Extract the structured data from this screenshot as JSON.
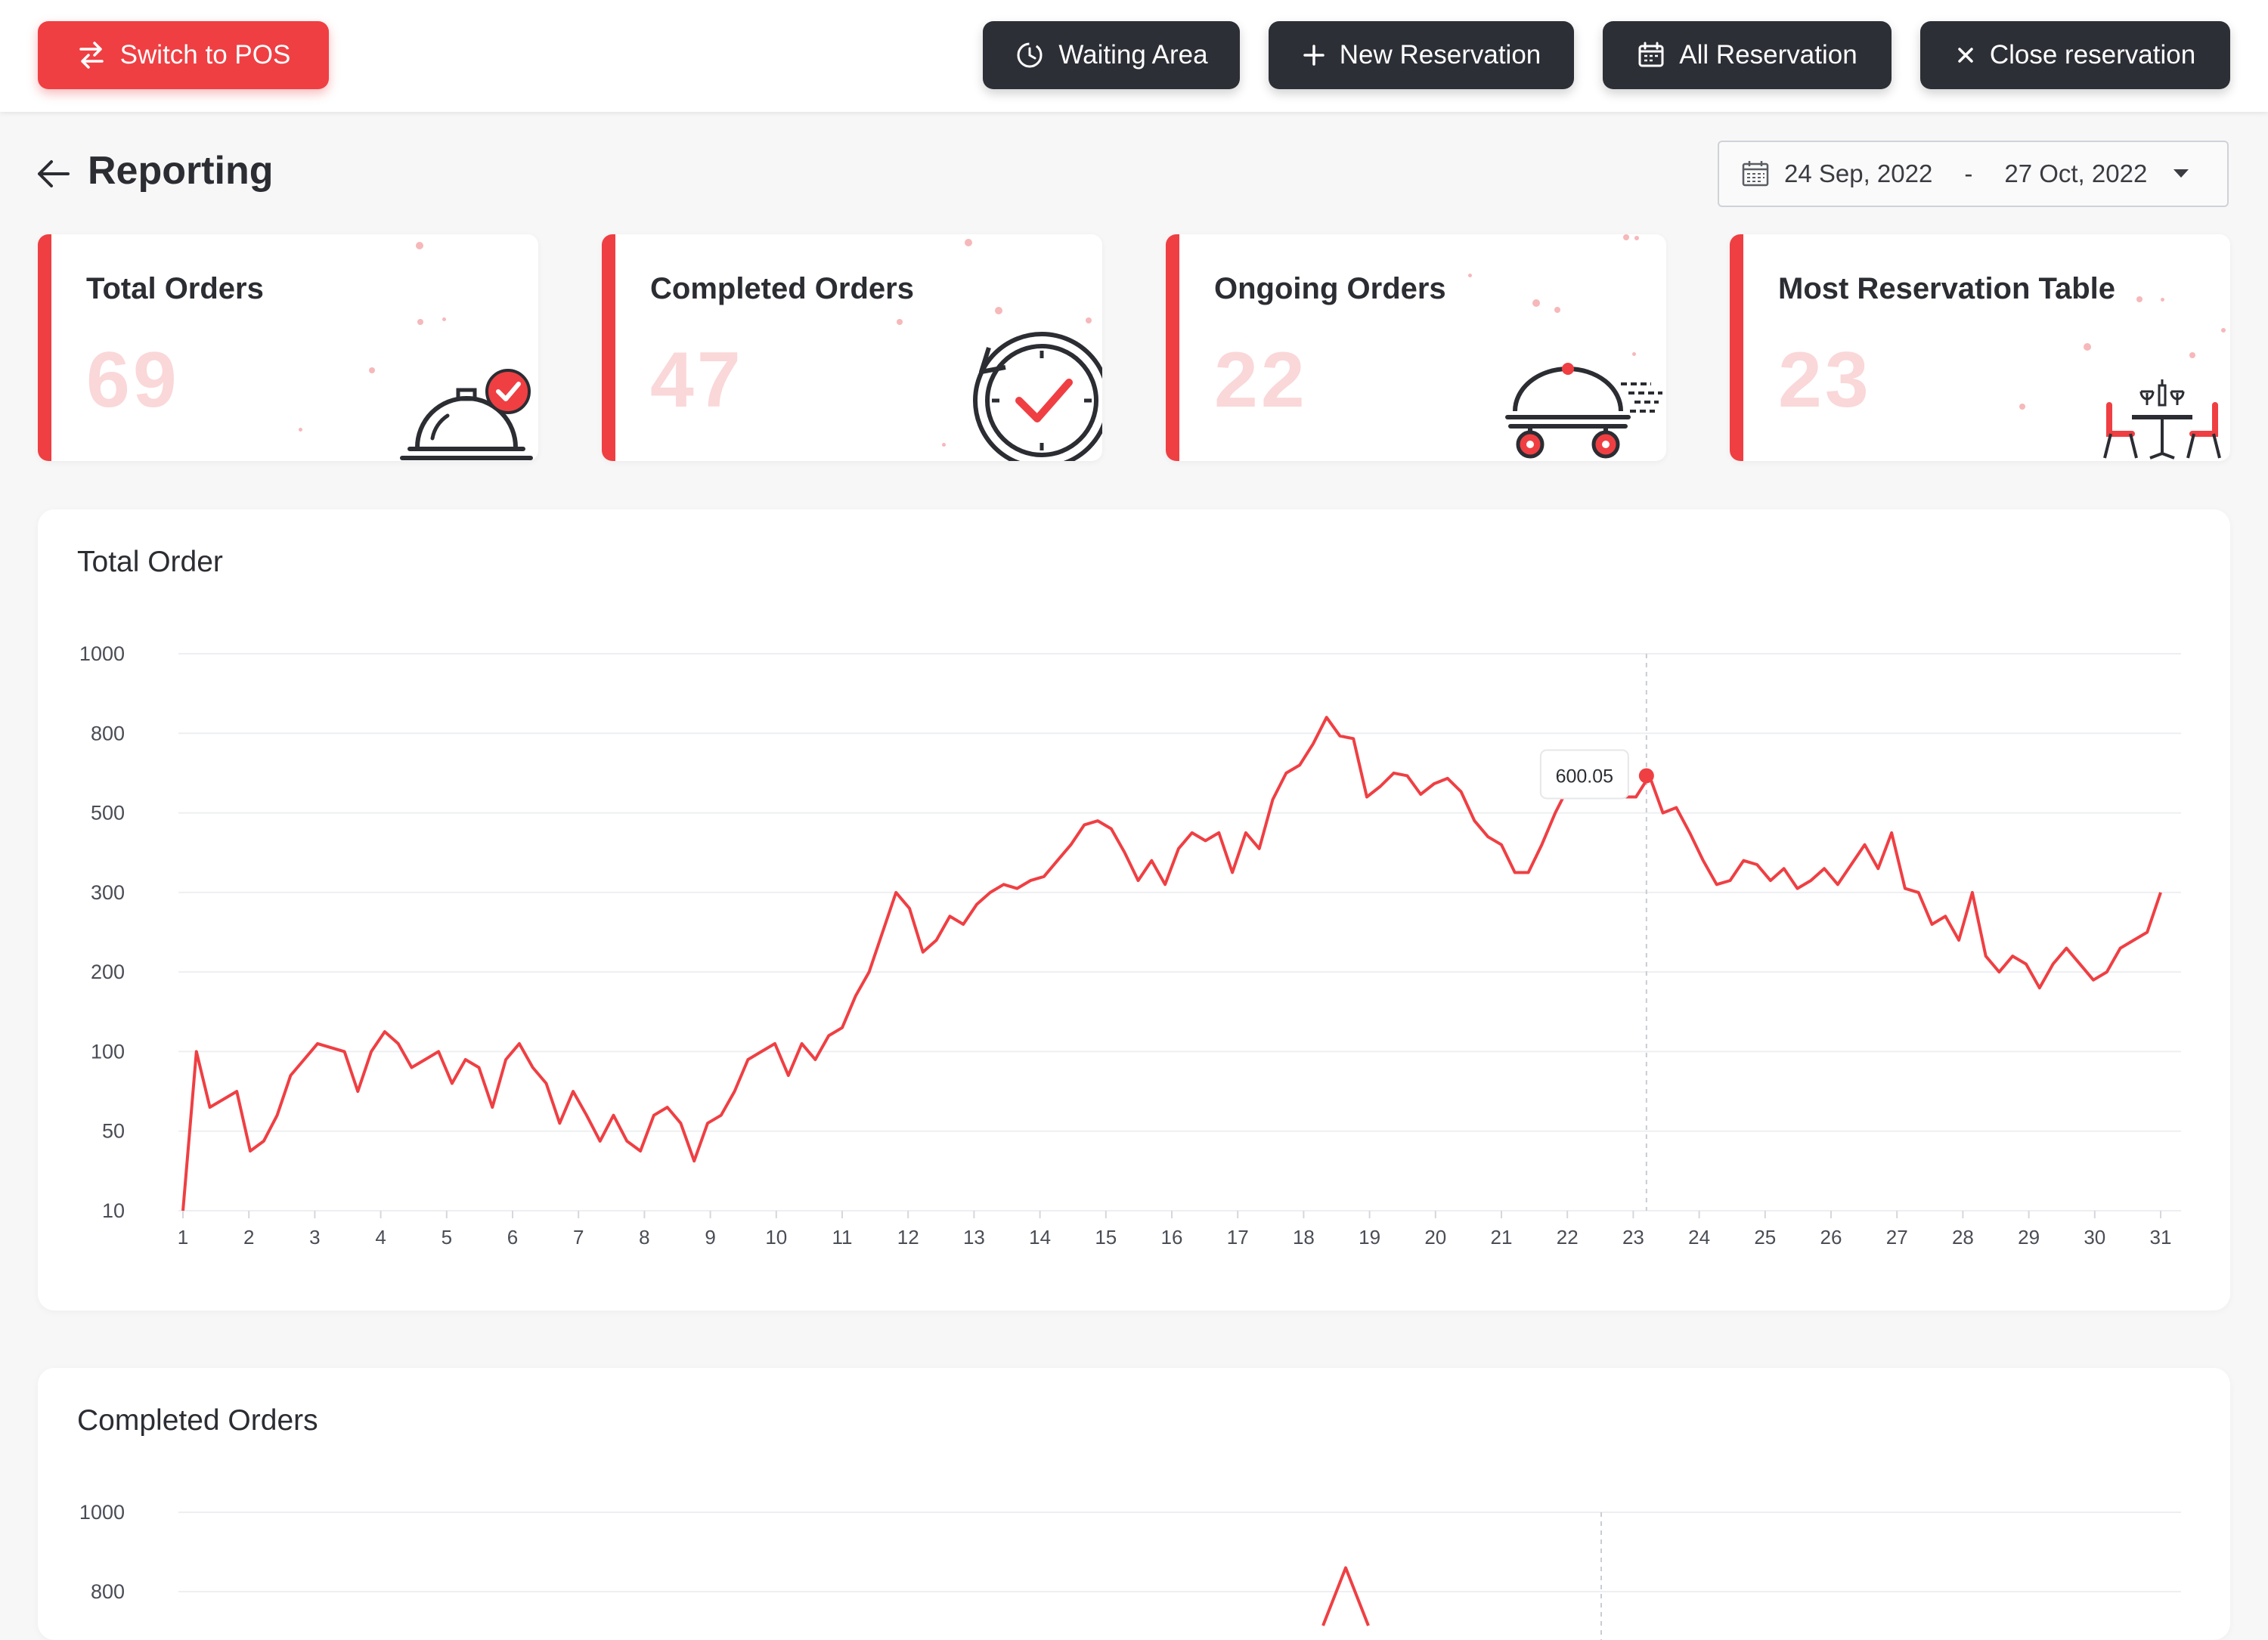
{
  "toolbar": {
    "switch_pos_label": "Switch to POS",
    "waiting_area_label": "Waiting Area",
    "new_reservation_label": "New Reservation",
    "all_reservation_label": "All Reservation",
    "close_reservation_label": "Close reservation"
  },
  "header": {
    "title": "Reporting",
    "date_start": "24 Sep, 2022",
    "date_separator": "-",
    "date_end": "27 Oct, 2022"
  },
  "cards": [
    {
      "title": "Total Orders",
      "value": "69",
      "icon": "serving-cloche-check-icon"
    },
    {
      "title": "Completed Orders",
      "value": "47",
      "icon": "clock-check-icon"
    },
    {
      "title": "Ongoing Orders",
      "value": "22",
      "icon": "serving-cart-icon"
    },
    {
      "title": "Most Reservation Table",
      "value": "23",
      "icon": "dining-table-icon"
    }
  ],
  "colors": {
    "accent": "#ef3f43",
    "dark_button": "#2d2f36",
    "muted_value": "#fad7d8"
  },
  "chart_data": [
    {
      "type": "line",
      "title": "Total Order",
      "y_ticks": [
        "10",
        "50",
        "100",
        "200",
        "300",
        "500",
        "800",
        "1000"
      ],
      "y_scale": "categorical-ticks (10,50,100,200,300,500,800,1000 evenly spaced)",
      "x_ticks": [
        "1",
        "2",
        "3",
        "4",
        "5",
        "6",
        "7",
        "8",
        "9",
        "10",
        "11",
        "12",
        "13",
        "14",
        "15",
        "16",
        "17",
        "18",
        "19",
        "20",
        "21",
        "22",
        "23",
        "24",
        "25",
        "26",
        "27",
        "28",
        "29",
        "30",
        "31"
      ],
      "grid": "horizontal",
      "tooltip": {
        "label": "600.05",
        "x": 23
      },
      "tooltip_x_day": 23.2,
      "series": [
        {
          "values": [
            10,
            100,
            65,
            70,
            75,
            40,
            45,
            60,
            85,
            95,
            110,
            105,
            100,
            75,
            100,
            125,
            110,
            90,
            95,
            100,
            80,
            95,
            90,
            65,
            95,
            110,
            90,
            80,
            55,
            75,
            60,
            45,
            60,
            45,
            40,
            60,
            65,
            55,
            35,
            55,
            60,
            75,
            95,
            100,
            110,
            85,
            110,
            95,
            120,
            130,
            170,
            200,
            250,
            300,
            280,
            225,
            240,
            270,
            260,
            285,
            300,
            320,
            310,
            330,
            340,
            380,
            420,
            470,
            480,
            460,
            400,
            330,
            380,
            320,
            410,
            450,
            430,
            450,
            350,
            450,
            410,
            550,
            650,
            680,
            760,
            840,
            790,
            780,
            560,
            600,
            650,
            640,
            570,
            610,
            630,
            580,
            480,
            440,
            420,
            350,
            350,
            420,
            500,
            600.05,
            640,
            680,
            620,
            560,
            560,
            640,
            500,
            520,
            450,
            380,
            320,
            330,
            380,
            370,
            330,
            360,
            310,
            330,
            360,
            320,
            370,
            420,
            360,
            450,
            310,
            300,
            260,
            270,
            240,
            300,
            220,
            200,
            220,
            210,
            180,
            210,
            230,
            210,
            190,
            200,
            230,
            240,
            250,
            300
          ]
        }
      ]
    },
    {
      "type": "line",
      "title": "Completed Orders",
      "y_ticks": [
        "1000",
        "800"
      ],
      "grid": "horizontal",
      "series": [
        {
          "values": [
            800,
            860
          ]
        }
      ]
    }
  ]
}
